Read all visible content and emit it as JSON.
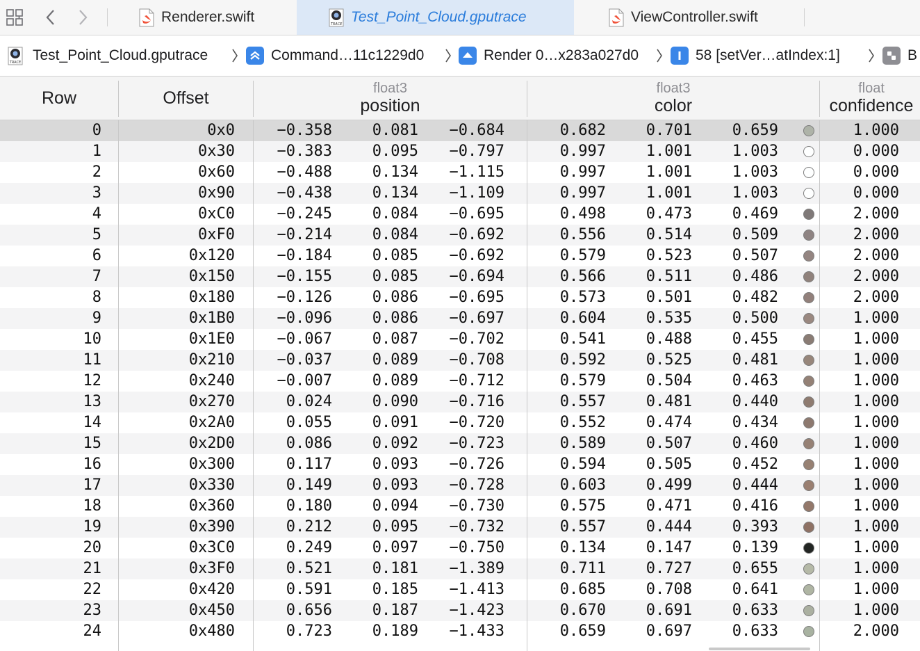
{
  "tabs": [
    {
      "label": "Renderer.swift",
      "icon": "swift-file-icon",
      "active": false
    },
    {
      "label": "Test_Point_Cloud.gputrace",
      "icon": "gputrace-file-icon",
      "active": true
    },
    {
      "label": "ViewController.swift",
      "icon": "swift-file-icon",
      "active": false
    }
  ],
  "breadcrumb": [
    {
      "label": "Test_Point_Cloud.gputrace",
      "icon": "gputrace-file-icon"
    },
    {
      "label": "Command…11c1229d0",
      "icon": "command-buffer-icon"
    },
    {
      "label": "Render 0…x283a027d0",
      "icon": "render-encoder-icon"
    },
    {
      "label": "58 [setVer…atIndex:1]",
      "icon": "function-call-icon"
    },
    {
      "label": "B",
      "icon": "buffer-icon"
    }
  ],
  "columns": {
    "row": "Row",
    "offset": "Offset",
    "position": {
      "type": "float3",
      "name": "position"
    },
    "color": {
      "type": "float3",
      "name": "color"
    },
    "confidence": {
      "type": "float",
      "name": "confidence"
    }
  },
  "rows": [
    {
      "row": "0",
      "offset": "0x0",
      "px": "-0.358",
      "py": "0.081",
      "pz": "-0.684",
      "cr": "0.682",
      "cg": "0.701",
      "cb": "0.659",
      "conf": "1.000"
    },
    {
      "row": "1",
      "offset": "0x30",
      "px": "-0.383",
      "py": "0.095",
      "pz": "-0.797",
      "cr": "0.997",
      "cg": "1.001",
      "cb": "1.003",
      "conf": "0.000"
    },
    {
      "row": "2",
      "offset": "0x60",
      "px": "-0.488",
      "py": "0.134",
      "pz": "-1.115",
      "cr": "0.997",
      "cg": "1.001",
      "cb": "1.003",
      "conf": "0.000"
    },
    {
      "row": "3",
      "offset": "0x90",
      "px": "-0.438",
      "py": "0.134",
      "pz": "-1.109",
      "cr": "0.997",
      "cg": "1.001",
      "cb": "1.003",
      "conf": "0.000"
    },
    {
      "row": "4",
      "offset": "0xC0",
      "px": "-0.245",
      "py": "0.084",
      "pz": "-0.695",
      "cr": "0.498",
      "cg": "0.473",
      "cb": "0.469",
      "conf": "2.000"
    },
    {
      "row": "5",
      "offset": "0xF0",
      "px": "-0.214",
      "py": "0.084",
      "pz": "-0.692",
      "cr": "0.556",
      "cg": "0.514",
      "cb": "0.509",
      "conf": "2.000"
    },
    {
      "row": "6",
      "offset": "0x120",
      "px": "-0.184",
      "py": "0.085",
      "pz": "-0.692",
      "cr": "0.579",
      "cg": "0.523",
      "cb": "0.507",
      "conf": "2.000"
    },
    {
      "row": "7",
      "offset": "0x150",
      "px": "-0.155",
      "py": "0.085",
      "pz": "-0.694",
      "cr": "0.566",
      "cg": "0.511",
      "cb": "0.486",
      "conf": "2.000"
    },
    {
      "row": "8",
      "offset": "0x180",
      "px": "-0.126",
      "py": "0.086",
      "pz": "-0.695",
      "cr": "0.573",
      "cg": "0.501",
      "cb": "0.482",
      "conf": "2.000"
    },
    {
      "row": "9",
      "offset": "0x1B0",
      "px": "-0.096",
      "py": "0.086",
      "pz": "-0.697",
      "cr": "0.604",
      "cg": "0.535",
      "cb": "0.500",
      "conf": "1.000"
    },
    {
      "row": "10",
      "offset": "0x1E0",
      "px": "-0.067",
      "py": "0.087",
      "pz": "-0.702",
      "cr": "0.541",
      "cg": "0.488",
      "cb": "0.455",
      "conf": "1.000"
    },
    {
      "row": "11",
      "offset": "0x210",
      "px": "-0.037",
      "py": "0.089",
      "pz": "-0.708",
      "cr": "0.592",
      "cg": "0.525",
      "cb": "0.481",
      "conf": "1.000"
    },
    {
      "row": "12",
      "offset": "0x240",
      "px": "-0.007",
      "py": "0.089",
      "pz": "-0.712",
      "cr": "0.579",
      "cg": "0.504",
      "cb": "0.463",
      "conf": "1.000"
    },
    {
      "row": "13",
      "offset": "0x270",
      "px": "0.024",
      "py": "0.090",
      "pz": "-0.716",
      "cr": "0.557",
      "cg": "0.481",
      "cb": "0.440",
      "conf": "1.000"
    },
    {
      "row": "14",
      "offset": "0x2A0",
      "px": "0.055",
      "py": "0.091",
      "pz": "-0.720",
      "cr": "0.552",
      "cg": "0.474",
      "cb": "0.434",
      "conf": "1.000"
    },
    {
      "row": "15",
      "offset": "0x2D0",
      "px": "0.086",
      "py": "0.092",
      "pz": "-0.723",
      "cr": "0.589",
      "cg": "0.507",
      "cb": "0.460",
      "conf": "1.000"
    },
    {
      "row": "16",
      "offset": "0x300",
      "px": "0.117",
      "py": "0.093",
      "pz": "-0.726",
      "cr": "0.594",
      "cg": "0.505",
      "cb": "0.452",
      "conf": "1.000"
    },
    {
      "row": "17",
      "offset": "0x330",
      "px": "0.149",
      "py": "0.093",
      "pz": "-0.728",
      "cr": "0.603",
      "cg": "0.499",
      "cb": "0.444",
      "conf": "1.000"
    },
    {
      "row": "18",
      "offset": "0x360",
      "px": "0.180",
      "py": "0.094",
      "pz": "-0.730",
      "cr": "0.575",
      "cg": "0.471",
      "cb": "0.416",
      "conf": "1.000"
    },
    {
      "row": "19",
      "offset": "0x390",
      "px": "0.212",
      "py": "0.095",
      "pz": "-0.732",
      "cr": "0.557",
      "cg": "0.444",
      "cb": "0.393",
      "conf": "1.000"
    },
    {
      "row": "20",
      "offset": "0x3C0",
      "px": "0.249",
      "py": "0.097",
      "pz": "-0.750",
      "cr": "0.134",
      "cg": "0.147",
      "cb": "0.139",
      "conf": "1.000"
    },
    {
      "row": "21",
      "offset": "0x3F0",
      "px": "0.521",
      "py": "0.181",
      "pz": "-1.389",
      "cr": "0.711",
      "cg": "0.727",
      "cb": "0.655",
      "conf": "1.000"
    },
    {
      "row": "22",
      "offset": "0x420",
      "px": "0.591",
      "py": "0.185",
      "pz": "-1.413",
      "cr": "0.685",
      "cg": "0.708",
      "cb": "0.641",
      "conf": "1.000"
    },
    {
      "row": "23",
      "offset": "0x450",
      "px": "0.656",
      "py": "0.187",
      "pz": "-1.423",
      "cr": "0.670",
      "cg": "0.691",
      "cb": "0.633",
      "conf": "1.000"
    },
    {
      "row": "24",
      "offset": "0x480",
      "px": "0.723",
      "py": "0.189",
      "pz": "-1.433",
      "cr": "0.659",
      "cg": "0.697",
      "cb": "0.633",
      "conf": "2.000"
    }
  ],
  "selected_row": "0",
  "colors": {
    "active_tab_bg": "#dce8f7",
    "active_tab_text": "#2a7cdb",
    "selected_row_bg": "#d9d9d9",
    "accent_blue": "#3a86e8",
    "swift_orange": "#f05138"
  }
}
